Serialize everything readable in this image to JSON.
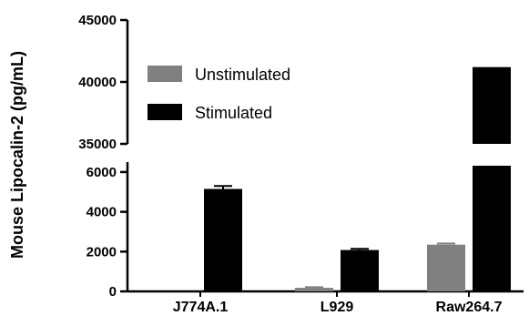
{
  "chart_data": {
    "type": "bar",
    "ylabel": "Mouse Lipocalin-2 (pg/mL)",
    "categories": [
      "J774A.1",
      "L929",
      "Raw264.7"
    ],
    "series": [
      {
        "name": "Unstimulated",
        "color": "#808080",
        "values": [
          0,
          180,
          2350
        ],
        "errors": [
          0,
          30,
          60
        ]
      },
      {
        "name": "Stimulated",
        "color": "#000000",
        "values": [
          5150,
          2080,
          41200
        ],
        "errors": [
          150,
          60,
          0
        ]
      }
    ],
    "y_axis": {
      "broken": true,
      "segments": [
        {
          "range": [
            0,
            6500
          ],
          "ticks": [
            0,
            2000,
            4000,
            6000
          ],
          "tick_labels": [
            "0",
            "2000",
            "4000",
            "6000"
          ]
        },
        {
          "range": [
            35000,
            45000
          ],
          "ticks": [
            35000,
            40000,
            45000
          ],
          "tick_labels": [
            "35000",
            "40000",
            "45000"
          ]
        }
      ]
    },
    "legend_position": "top-left"
  }
}
